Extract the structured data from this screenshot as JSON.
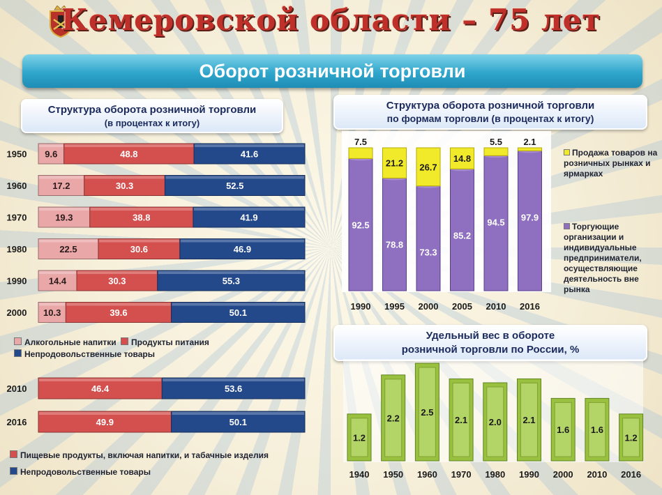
{
  "header": {
    "title": "Кемеровской области – 75 лет",
    "banner": "Оборот розничной торговли"
  },
  "left_panel": {
    "title_line1": "Структура оборота розничной торговли",
    "title_line2": "(в процентах к итогу)",
    "legend1": [
      "Алкогольные напитки",
      "Продукты питания",
      "Непродовольственные товары"
    ],
    "legend2": [
      "Пищевые продукты, включая напитки, и табачные изделия",
      "Непродовольственные товары"
    ]
  },
  "right_top_panel": {
    "title_line1": "Структура оборота розничной торговли",
    "title_line2": "по формам торговли (в процентах к итогу)",
    "legend_markets": "Продажа товаров на розничных рынках и ярмарках",
    "legend_orgs": "Торгующие организации и индивидуальные предприниматели, осуществляющие деятельность вне рынка"
  },
  "right_bottom_panel": {
    "title_line1": "Удельный вес в обороте",
    "title_line2": "розничной торговли по России, %"
  },
  "colors": {
    "alcohol": "#e9a7a7",
    "food": "#d4504e",
    "nonfood": "#23498b",
    "market": "#f1ea2a",
    "orgs": "#8e6fc0",
    "share": "#99c13f"
  },
  "chart_data": [
    {
      "type": "bar",
      "orientation": "horizontal-stacked",
      "categories": [
        "1950",
        "1960",
        "1970",
        "1980",
        "1990",
        "2000"
      ],
      "series": [
        {
          "name": "Алкогольные напитки",
          "values": [
            9.6,
            17.2,
            19.3,
            22.5,
            14.4,
            10.3
          ]
        },
        {
          "name": "Продукты питания",
          "values": [
            48.8,
            30.3,
            38.8,
            30.6,
            30.3,
            39.6
          ]
        },
        {
          "name": "Непродовольственные товары",
          "values": [
            41.6,
            52.5,
            41.9,
            46.9,
            55.3,
            50.1
          ]
        }
      ]
    },
    {
      "type": "bar",
      "orientation": "horizontal-stacked",
      "categories": [
        "2010",
        "2016"
      ],
      "series": [
        {
          "name": "Пищевые продукты, включая напитки, и табачные изделия",
          "values": [
            46.4,
            49.9
          ]
        },
        {
          "name": "Непродовольственные товары",
          "values": [
            53.6,
            50.1
          ]
        }
      ]
    },
    {
      "type": "bar",
      "orientation": "vertical-stacked",
      "categories": [
        "1990",
        "1995",
        "2000",
        "2005",
        "2010",
        "2016"
      ],
      "series": [
        {
          "name": "Торгующие организации и индивидуальные предприниматели, осуществляющие деятельность вне рынка",
          "values": [
            92.5,
            78.8,
            73.3,
            85.2,
            94.5,
            97.9
          ]
        },
        {
          "name": "Продажа товаров на розничных рынках и ярмарках",
          "values": [
            7.5,
            21.2,
            26.7,
            14.8,
            5.5,
            2.1
          ]
        }
      ]
    },
    {
      "type": "bar",
      "categories": [
        "1940",
        "1950",
        "1960",
        "1970",
        "1980",
        "1990",
        "2000",
        "2010",
        "2016"
      ],
      "values": [
        1.2,
        2.2,
        2.5,
        2.1,
        2.0,
        2.1,
        1.6,
        1.6,
        1.2
      ]
    }
  ]
}
